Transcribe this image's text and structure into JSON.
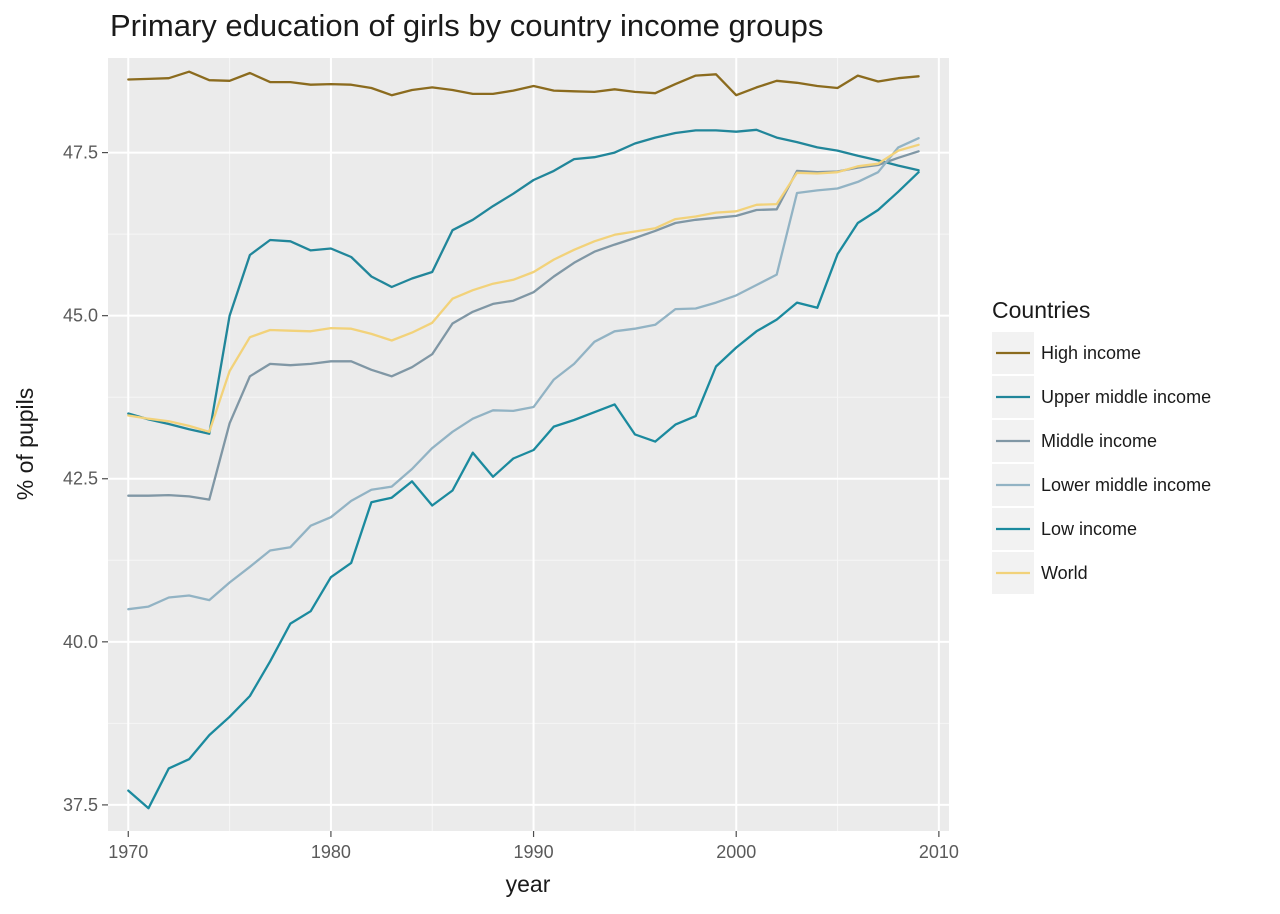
{
  "chart_data": {
    "type": "line",
    "title": "Primary education of girls by country income groups",
    "xlabel": "year",
    "ylabel": "% of pupils",
    "xlim": [
      1969,
      2010.5
    ],
    "ylim": [
      37.1,
      48.95
    ],
    "x_ticks": [
      1970,
      1980,
      1990,
      2000,
      2010
    ],
    "x_tick_labels": [
      "1970",
      "1980",
      "1990",
      "2000",
      "2010"
    ],
    "y_ticks": [
      37.5,
      40.0,
      42.5,
      45.0,
      47.5
    ],
    "y_tick_labels": [
      "37.5",
      "40.0",
      "42.5",
      "45.0",
      "47.5"
    ],
    "grid": true,
    "legend": {
      "title": "Countries",
      "position": "right"
    },
    "x": [
      1970,
      1971,
      1972,
      1973,
      1974,
      1975,
      1976,
      1977,
      1978,
      1979,
      1980,
      1981,
      1982,
      1983,
      1984,
      1985,
      1986,
      1987,
      1988,
      1989,
      1990,
      1991,
      1992,
      1993,
      1994,
      1995,
      1996,
      1997,
      1998,
      1999,
      2000,
      2001,
      2002,
      2003,
      2004,
      2005,
      2006,
      2007,
      2008,
      2009
    ],
    "series": [
      {
        "name": "High income",
        "color": "#8B6B1E",
        "values": [
          48.62,
          48.63,
          48.64,
          48.74,
          48.61,
          48.6,
          48.72,
          48.58,
          48.58,
          48.54,
          48.55,
          48.54,
          48.49,
          48.38,
          48.46,
          48.5,
          48.46,
          48.4,
          48.4,
          48.45,
          48.52,
          48.45,
          48.44,
          48.43,
          48.47,
          48.43,
          48.41,
          48.55,
          48.68,
          48.7,
          48.38,
          48.5,
          48.6,
          48.57,
          48.52,
          48.49,
          48.68,
          48.59,
          48.64,
          48.67
        ]
      },
      {
        "name": "Upper middle income",
        "color": "#21869A",
        "values": [
          43.5,
          43.41,
          43.34,
          43.26,
          43.19,
          45.0,
          45.93,
          46.16,
          46.14,
          46.0,
          46.03,
          45.9,
          45.6,
          45.44,
          45.57,
          45.67,
          46.31,
          46.47,
          46.68,
          46.87,
          47.08,
          47.22,
          47.4,
          47.43,
          47.5,
          47.64,
          47.73,
          47.8,
          47.84,
          47.84,
          47.82,
          47.85,
          47.73,
          47.66,
          47.58,
          47.53,
          47.45,
          47.38,
          47.3,
          47.23
        ]
      },
      {
        "name": "Middle income",
        "color": "#8097A5",
        "values": [
          42.24,
          42.24,
          42.25,
          42.23,
          42.18,
          43.35,
          44.07,
          44.26,
          44.24,
          44.26,
          44.3,
          44.3,
          44.17,
          44.07,
          44.21,
          44.41,
          44.88,
          45.06,
          45.18,
          45.23,
          45.36,
          45.6,
          45.81,
          45.98,
          46.09,
          46.19,
          46.3,
          46.42,
          46.47,
          46.5,
          46.53,
          46.62,
          46.63,
          47.22,
          47.2,
          47.21,
          47.27,
          47.31,
          47.42,
          47.52
        ]
      },
      {
        "name": "Lower middle income",
        "color": "#92B3C4",
        "values": [
          40.5,
          40.54,
          40.68,
          40.71,
          40.64,
          40.91,
          41.15,
          41.4,
          41.45,
          41.78,
          41.91,
          42.16,
          42.33,
          42.38,
          42.65,
          42.97,
          43.22,
          43.42,
          43.55,
          43.54,
          43.6,
          44.02,
          44.26,
          44.6,
          44.76,
          44.8,
          44.86,
          45.1,
          45.11,
          45.2,
          45.31,
          45.47,
          45.63,
          46.88,
          46.92,
          46.95,
          47.05,
          47.2,
          47.58,
          47.72
        ]
      },
      {
        "name": "Low income",
        "color": "#1B8A9E",
        "values": [
          37.72,
          37.45,
          38.06,
          38.2,
          38.57,
          38.85,
          39.17,
          39.7,
          40.28,
          40.47,
          40.99,
          41.21,
          42.14,
          42.21,
          42.46,
          42.09,
          42.32,
          42.9,
          42.53,
          42.81,
          42.94,
          43.3,
          43.4,
          43.52,
          43.64,
          43.18,
          43.07,
          43.33,
          43.46,
          44.22,
          44.51,
          44.76,
          44.94,
          45.2,
          45.12,
          45.94,
          46.42,
          46.62,
          46.9,
          47.2
        ]
      },
      {
        "name": "World",
        "color": "#F2D27A",
        "values": [
          43.47,
          43.42,
          43.38,
          43.31,
          43.22,
          44.15,
          44.67,
          44.78,
          44.77,
          44.76,
          44.81,
          44.8,
          44.72,
          44.62,
          44.74,
          44.89,
          45.26,
          45.39,
          45.49,
          45.55,
          45.67,
          45.86,
          46.01,
          46.14,
          46.24,
          46.29,
          46.34,
          46.48,
          46.52,
          46.58,
          46.6,
          46.7,
          46.71,
          47.19,
          47.18,
          47.2,
          47.29,
          47.33,
          47.53,
          47.62
        ]
      }
    ]
  }
}
